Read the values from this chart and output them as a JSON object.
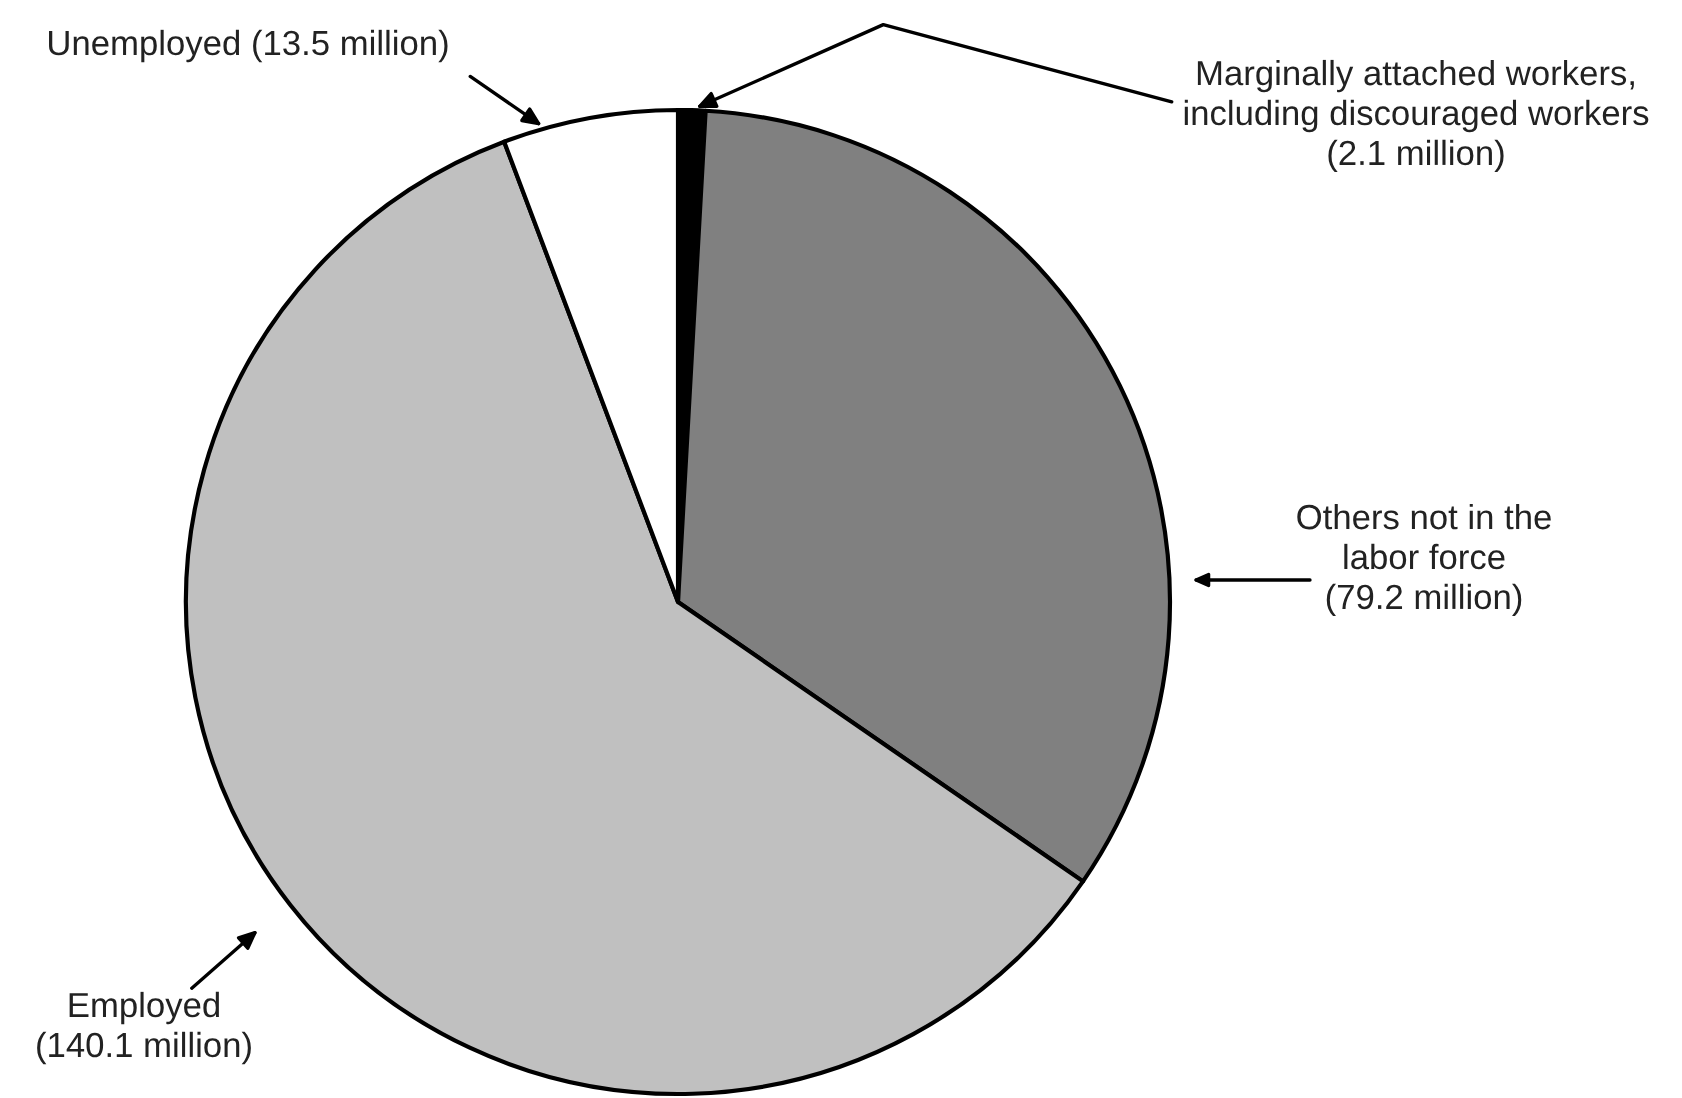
{
  "chart_data": {
    "type": "pie",
    "categories": [
      "Marginally attached workers,\nincluding discouraged workers",
      "Others not in the\nlabor force",
      "Employed",
      "Unemployed"
    ],
    "values": [
      2.1,
      79.2,
      140.1,
      13.5
    ],
    "value_labels": [
      "(2.1 million)",
      "(79.2 million)",
      "(140.1 million)",
      "(13.5 million)"
    ],
    "colors": [
      "#000000",
      "#808080",
      "#c0c0c0",
      "#ffffff"
    ]
  }
}
